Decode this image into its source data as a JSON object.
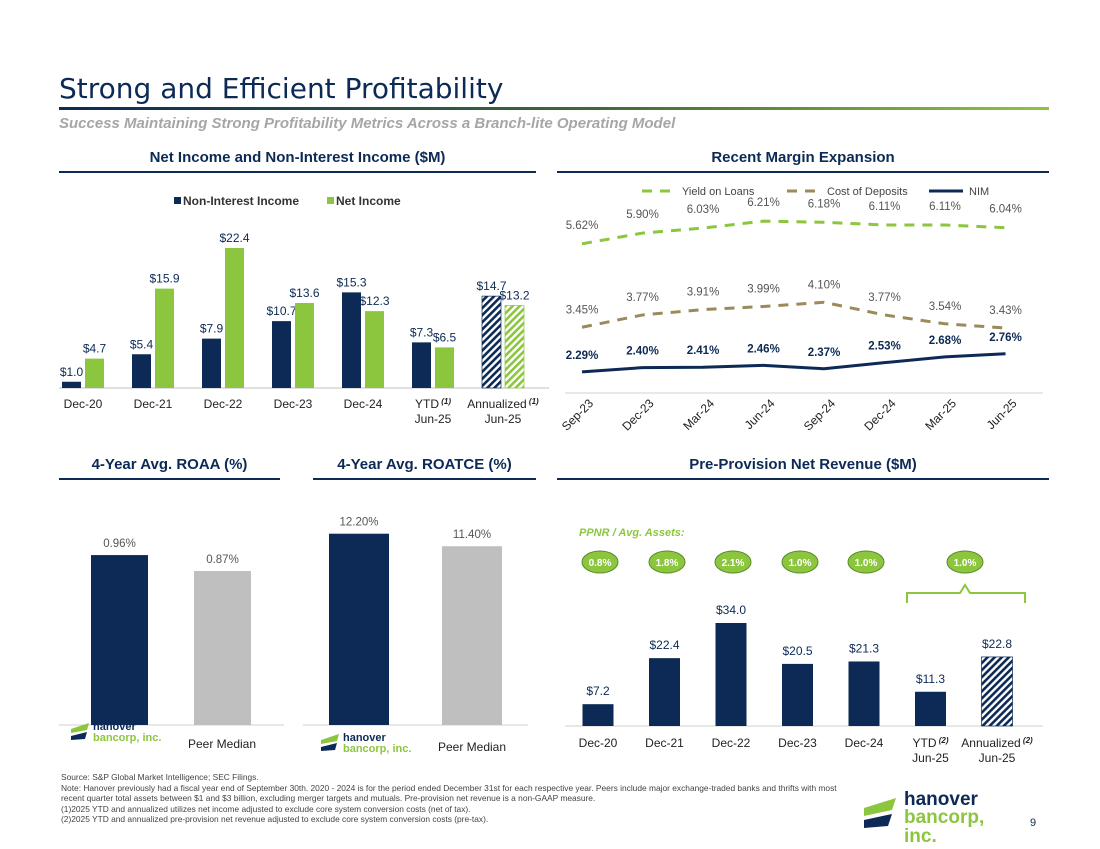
{
  "header": {
    "title": "Strong and Efficient Profitability",
    "subtitle": "Success Maintaining Strong Profitability Metrics Across a Branch-lite Operating Model"
  },
  "colors": {
    "navy": "#0c2a55",
    "green": "#8cc63f",
    "gold": "#9b8a5a",
    "gray": "#bfbfbf"
  },
  "sections": {
    "net_income": "Net Income and Non-Interest Income ($M)",
    "margin": "Recent Margin Expansion",
    "roaa": "4-Year Avg. ROAA (%)",
    "roatce": "4-Year Avg. ROATCE (%)",
    "ppnr": "Pre-Provision Net Revenue ($M)"
  },
  "chart_data": [
    {
      "id": "net_income",
      "type": "bar",
      "title": "Net Income and Non-Interest Income ($M)",
      "categories": [
        "Dec-20",
        "Dec-21",
        "Dec-22",
        "Dec-23",
        "Dec-24",
        "YTD (1) Jun-25",
        "Annualized (1) Jun-25"
      ],
      "category_lines": [
        [
          "Dec-20"
        ],
        [
          "Dec-21"
        ],
        [
          "Dec-22"
        ],
        [
          "Dec-23"
        ],
        [
          "Dec-24"
        ],
        [
          "YTD",
          "Jun-25"
        ],
        [
          "Annualized",
          "Jun-25"
        ]
      ],
      "footnote_marks": [
        "",
        "",
        "",
        "",
        "",
        "(1)",
        "(1)"
      ],
      "series": [
        {
          "name": "Non-Interest Income",
          "values": [
            1.0,
            5.4,
            7.9,
            10.7,
            15.3,
            7.3,
            14.7
          ],
          "labels": [
            "$1.0",
            "$5.4",
            "$7.9",
            "$10.7",
            "$15.3",
            "$7.3",
            "$14.7"
          ]
        },
        {
          "name": "Net Income",
          "values": [
            4.7,
            15.9,
            22.4,
            13.6,
            12.3,
            6.5,
            13.2
          ],
          "labels": [
            "$4.7",
            "$15.9",
            "$22.4",
            "$13.6",
            "$12.3",
            "$6.5",
            "$13.2"
          ]
        }
      ],
      "hatched_index": 6,
      "ylim": [
        0,
        24
      ]
    },
    {
      "id": "margin",
      "type": "line",
      "title": "Recent Margin Expansion",
      "categories": [
        "Sep-23",
        "Dec-23",
        "Mar-24",
        "Jun-24",
        "Sep-24",
        "Dec-24",
        "Mar-25",
        "Jun-25"
      ],
      "series": [
        {
          "name": "Yield on Loans",
          "values": [
            5.62,
            5.9,
            6.03,
            6.21,
            6.18,
            6.11,
            6.11,
            6.04
          ],
          "labels": [
            "5.62%",
            "5.90%",
            "6.03%",
            "6.21%",
            "6.18%",
            "6.11%",
            "6.11%",
            "6.04%"
          ]
        },
        {
          "name": "Cost of Deposits",
          "values": [
            3.45,
            3.77,
            3.91,
            3.99,
            4.1,
            3.77,
            3.54,
            3.43
          ],
          "labels": [
            "3.45%",
            "3.77%",
            "3.91%",
            "3.99%",
            "4.10%",
            "3.77%",
            "3.54%",
            "3.43%"
          ]
        },
        {
          "name": "NIM",
          "values": [
            2.29,
            2.4,
            2.41,
            2.46,
            2.37,
            2.53,
            2.68,
            2.76
          ],
          "labels": [
            "2.29%",
            "2.40%",
            "2.41%",
            "2.46%",
            "2.37%",
            "2.53%",
            "2.68%",
            "2.76%"
          ]
        }
      ],
      "ylim": [
        2,
        6.5
      ]
    },
    {
      "id": "roaa",
      "type": "bar",
      "title": "4-Year Avg. ROAA (%)",
      "categories": [
        "hanover bancorp, inc.",
        "Peer Median"
      ],
      "values": [
        0.96,
        0.87
      ],
      "labels": [
        "0.96%",
        "0.87%"
      ],
      "ylim": [
        0,
        1.0
      ]
    },
    {
      "id": "roatce",
      "type": "bar",
      "title": "4-Year Avg. ROATCE (%)",
      "categories": [
        "hanover bancorp, inc.",
        "Peer Median"
      ],
      "values": [
        12.2,
        11.4
      ],
      "labels": [
        "12.20%",
        "11.40%"
      ],
      "ylim": [
        0,
        12.5
      ]
    },
    {
      "id": "ppnr",
      "type": "bar",
      "title": "Pre-Provision Net Revenue ($M)",
      "categories": [
        "Dec-20",
        "Dec-21",
        "Dec-22",
        "Dec-23",
        "Dec-24",
        "YTD (2) Jun-25",
        "Annualized (2) Jun-25"
      ],
      "category_lines": [
        [
          "Dec-20"
        ],
        [
          "Dec-21"
        ],
        [
          "Dec-22"
        ],
        [
          "Dec-23"
        ],
        [
          "Dec-24"
        ],
        [
          "YTD",
          "Jun-25"
        ],
        [
          "Annualized",
          "Jun-25"
        ]
      ],
      "footnote_marks": [
        "",
        "",
        "",
        "",
        "",
        "(2)",
        "(2)"
      ],
      "values": [
        7.2,
        22.4,
        34.0,
        20.5,
        21.3,
        11.3,
        22.8
      ],
      "labels": [
        "$7.2",
        "$22.4",
        "$34.0",
        "$20.5",
        "$21.3",
        "$11.3",
        "$22.8"
      ],
      "hatched_index": 6,
      "ratio_title": "PPNR / Avg. Assets:",
      "ratios": [
        "0.8%",
        "1.8%",
        "2.1%",
        "1.0%",
        "1.0%",
        "1.0%"
      ],
      "ylim": [
        0,
        36
      ]
    }
  ],
  "logo": {
    "line1": "hanover",
    "line2": "bancorp, inc."
  },
  "footnotes": [
    "Source: S&P Global Market Intelligence; SEC Filings.",
    "Note: Hanover previously had a fiscal year end of September 30th. 2020 - 2024 is for the period ended December 31st for each respective year. Peers include major exchange-traded banks and thrifts with most recent quarter total assets between $1 and $3 billion, excluding merger targets and mutuals. Pre-provision net revenue is a non-GAAP measure.",
    "(1)2025 YTD and annualized utilizes net income adjusted to exclude core system conversion costs (net of tax).",
    "(2)2025 YTD and annualized pre-provision net revenue adjusted to exclude core system conversion costs (pre-tax)."
  ],
  "page_number": "9"
}
